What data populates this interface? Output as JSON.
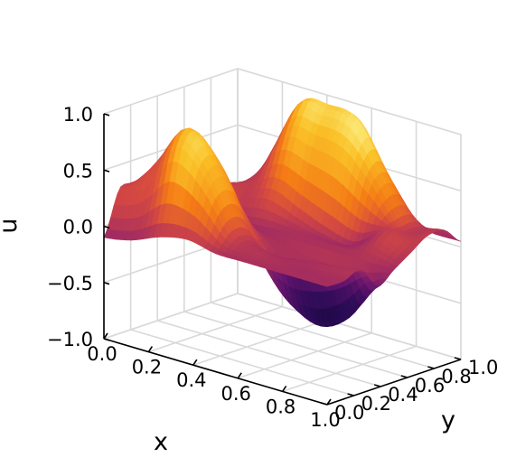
{
  "chart_data": {
    "type": "surface",
    "title": "",
    "xlabel": "x",
    "ylabel": "y",
    "zlabel": "u",
    "xlim": [
      0,
      1
    ],
    "ylim": [
      0,
      1
    ],
    "zlim": [
      -1,
      1
    ],
    "x_ticks": [
      "0.0",
      "0.2",
      "0.4",
      "0.6",
      "0.8",
      "1.0"
    ],
    "y_ticks": [
      "0.0",
      "0.2",
      "0.4",
      "0.6",
      "0.8",
      "1.0"
    ],
    "z_ticks": [
      "−1.0",
      "−0.5",
      "0.0",
      "0.5",
      "1.0"
    ],
    "grid": true,
    "colormap": "inferno",
    "z_grid_y": [
      0,
      0.125,
      0.25,
      0.375,
      0.5,
      0.625,
      0.75,
      0.875,
      1.0
    ],
    "z_grid_x": [
      0,
      0.125,
      0.25,
      0.375,
      0.5,
      0.625,
      0.75,
      0.875,
      1.0
    ],
    "z_values": [
      [
        -0.1,
        -0.05,
        0.05,
        0.1,
        0.05,
        0.05,
        0.05,
        0.05,
        0.05
      ],
      [
        0.3,
        0.45,
        0.8,
        0.6,
        0.2,
        0.1,
        0.05,
        0.05,
        0.05
      ],
      [
        0.2,
        0.6,
        0.9,
        0.65,
        0.15,
        -0.05,
        0.0,
        0.05,
        0.1
      ],
      [
        0.05,
        0.35,
        0.4,
        0.3,
        -0.2,
        -0.5,
        -0.6,
        -0.45,
        -0.1
      ],
      [
        0.0,
        0.0,
        0.0,
        0.0,
        0.0,
        0.0,
        0.0,
        0.0,
        0.0
      ],
      [
        -0.05,
        0.2,
        0.2,
        0.3,
        0.2,
        0.1,
        0.05,
        0.2,
        0.1
      ],
      [
        -0.1,
        0.1,
        0.35,
        0.8,
        0.8,
        0.75,
        0.5,
        0.2,
        0.2
      ],
      [
        -0.1,
        0.05,
        0.4,
        0.95,
        1.0,
        0.95,
        0.55,
        0.2,
        0.2
      ],
      [
        -0.1,
        -0.05,
        0.1,
        0.2,
        0.2,
        0.15,
        0.1,
        0.05,
        0.05
      ]
    ]
  }
}
